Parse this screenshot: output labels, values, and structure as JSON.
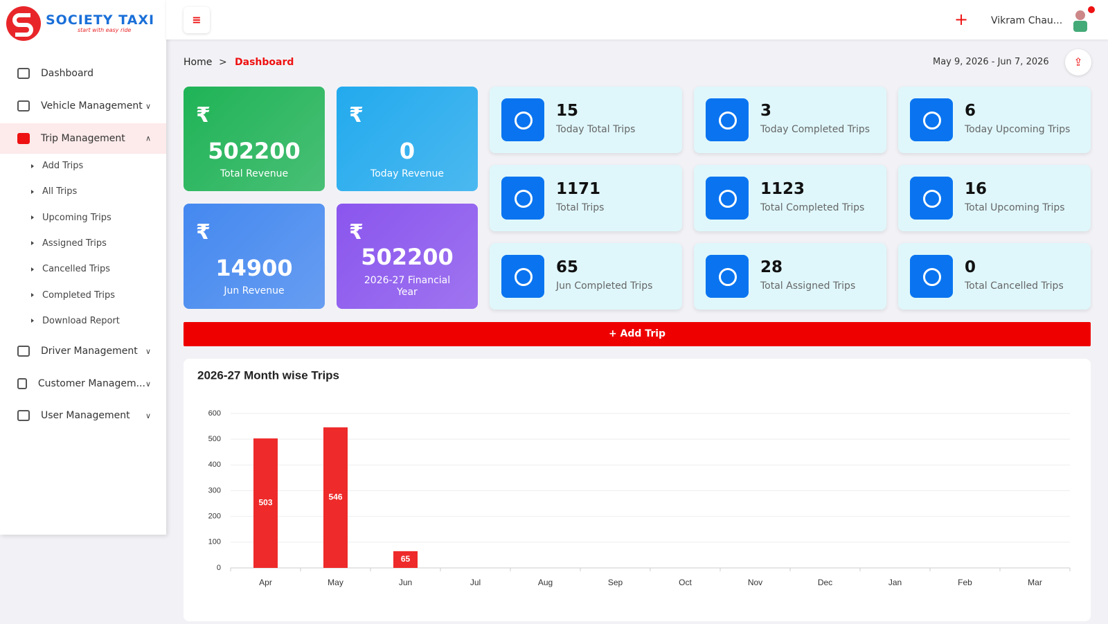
{
  "brand": {
    "name": "SOCIETY TAXI",
    "tagline": "start with easy ride"
  },
  "nav": [
    {
      "label": "Dashboard"
    },
    {
      "label": "Vehicle Management"
    },
    {
      "label": "Trip Management"
    },
    {
      "label": "Driver Management"
    },
    {
      "label": "Customer Managem..."
    },
    {
      "label": "User Management"
    }
  ],
  "subnav": [
    "Add Trips",
    "All Trips",
    "Upcoming Trips",
    "Assigned Trips",
    "Cancelled Trips",
    "Completed Trips",
    "Download Report"
  ],
  "header": {
    "plus": "+",
    "user": "Vikram Chau..."
  },
  "breadcrumb": {
    "home": "Home",
    "separator": ">",
    "current": "Dashboard"
  },
  "date_range": "May 9, 2026 - Jun 7, 2026",
  "currency": "₹",
  "revenue_cards": [
    {
      "value": "502200",
      "label": "Total Revenue",
      "color": "#1fb356"
    },
    {
      "value": "0",
      "label": "Today Revenue",
      "color": "#22aaee"
    },
    {
      "value": "14900",
      "label": "Jun Revenue",
      "color": "#4488f0"
    },
    {
      "value": "502200",
      "label": "2026-27 Financial Year",
      "color": "#8a55ee"
    }
  ],
  "stat_cards": [
    {
      "value": "15",
      "label": "Today Total Trips"
    },
    {
      "value": "3",
      "label": "Today Completed Trips"
    },
    {
      "value": "6",
      "label": "Today Upcoming Trips"
    },
    {
      "value": "1171",
      "label": "Total Trips"
    },
    {
      "value": "1123",
      "label": "Total Completed Trips"
    },
    {
      "value": "16",
      "label": "Total Upcoming Trips"
    },
    {
      "value": "65",
      "label": "Jun Completed Trips"
    },
    {
      "value": "28",
      "label": "Total Assigned Trips"
    },
    {
      "value": "0",
      "label": "Total Cancelled Trips"
    }
  ],
  "add_trip": "+ Add Trip",
  "chart_data": {
    "type": "bar",
    "title": "2026-27 Month wise Trips",
    "categories": [
      "Apr",
      "May",
      "Jun",
      "Jul",
      "Aug",
      "Sep",
      "Oct",
      "Nov",
      "Dec",
      "Jan",
      "Feb",
      "Mar"
    ],
    "values": [
      503,
      546,
      65,
      0,
      0,
      0,
      0,
      0,
      0,
      0,
      0,
      0
    ],
    "color": "#ee2a2a",
    "ylim": [
      0,
      600
    ],
    "yticks": [
      0,
      100,
      200,
      300,
      400,
      500,
      600
    ],
    "grid": true
  }
}
